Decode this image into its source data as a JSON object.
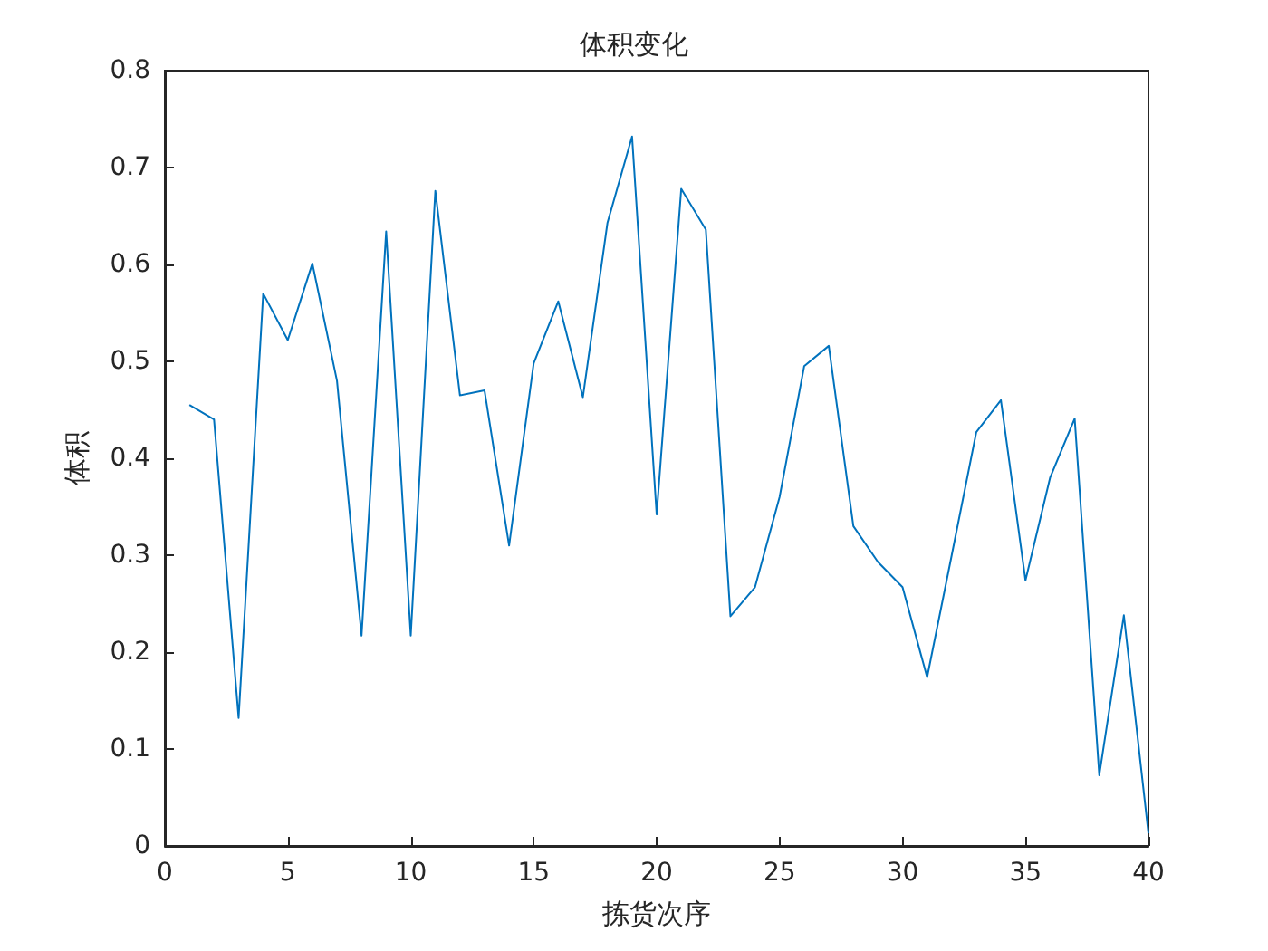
{
  "chart_data": {
    "type": "line",
    "title": "体积变化",
    "xlabel": "拣货次序",
    "ylabel": "体积",
    "x": [
      1,
      2,
      3,
      4,
      5,
      6,
      7,
      8,
      9,
      10,
      11,
      12,
      13,
      14,
      15,
      16,
      17,
      18,
      19,
      20,
      21,
      22,
      23,
      24,
      25,
      26,
      27,
      28,
      29,
      30,
      31,
      32,
      33,
      34,
      35,
      36,
      37,
      38,
      39,
      40
    ],
    "series": [
      {
        "color": "#0072bd",
        "values": [
          0.455,
          0.44,
          0.132,
          0.57,
          0.522,
          0.601,
          0.48,
          0.217,
          0.634,
          0.217,
          0.676,
          0.465,
          0.47,
          0.31,
          0.498,
          0.562,
          0.463,
          0.643,
          0.732,
          0.342,
          0.678,
          0.636,
          0.237,
          0.267,
          0.36,
          0.495,
          0.516,
          0.33,
          0.293,
          0.267,
          0.174,
          0.3,
          0.427,
          0.46,
          0.274,
          0.38,
          0.441,
          0.073,
          0.238,
          0.013
        ]
      }
    ],
    "xlim": [
      0,
      40
    ],
    "xticks": [
      0,
      5,
      10,
      15,
      20,
      25,
      30,
      35,
      40
    ],
    "ylim": [
      0,
      0.8
    ],
    "yticks": [
      0,
      0.1,
      0.2,
      0.3,
      0.4,
      0.5,
      0.6,
      0.7,
      0.8
    ],
    "grid": false,
    "marker": "none",
    "line_style": "solid"
  }
}
